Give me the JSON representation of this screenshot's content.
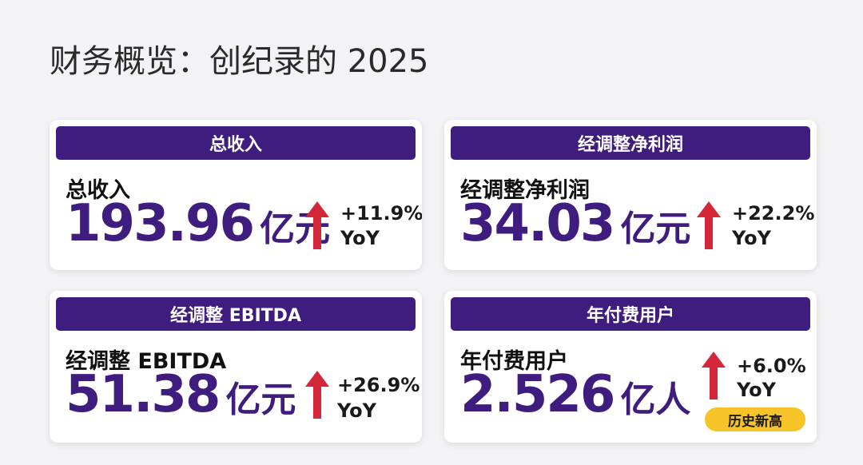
{
  "page": {
    "title": "财务概览：创纪录的 2025"
  },
  "colors": {
    "header_bg": "#3f1d7f",
    "value_text": "#3f1d7f",
    "arrow_up": "#d4283a",
    "badge_bg": "#f6c428",
    "card_bg": "#ffffff",
    "page_bg": "#f3f2f5"
  },
  "cards": [
    {
      "header": "总收入",
      "label": "总收入",
      "value": "193.96",
      "unit": "亿元",
      "change": "+11.9%",
      "change_suffix": "YoY",
      "arrow_icon": "arrow-up-icon"
    },
    {
      "header": "经调整净利润",
      "label": "经调整净利润",
      "value": "34.03",
      "unit": "亿元",
      "change": "+22.2%",
      "change_suffix": "YoY",
      "arrow_icon": "arrow-up-icon"
    },
    {
      "header": "经调整 EBITDA",
      "label": "经调整 EBITDA",
      "value": "51.38",
      "unit": "亿元",
      "change": "+26.9%",
      "change_suffix": "YoY",
      "arrow_icon": "arrow-up-icon"
    },
    {
      "header": "年付费用户",
      "label": "年付费用户",
      "value": "2.526",
      "unit": "亿人",
      "change": "+6.0%",
      "change_suffix": "YoY",
      "badge": "历史新高",
      "arrow_icon": "arrow-up-icon"
    }
  ]
}
